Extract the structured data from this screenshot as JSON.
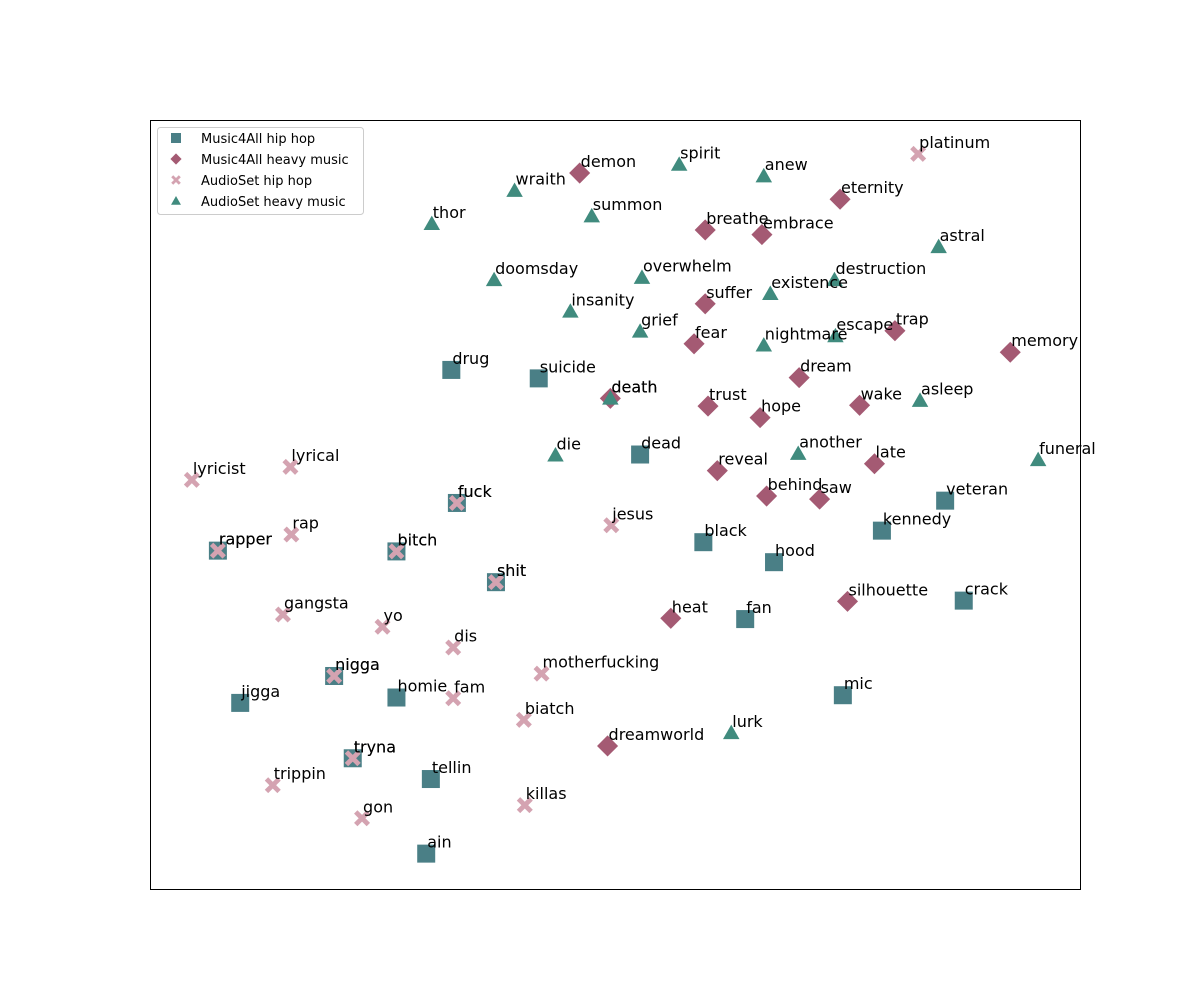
{
  "chart_data": {
    "type": "scatter",
    "title": "",
    "xlabel": "",
    "ylabel": "",
    "xlim": [
      0,
      100
    ],
    "ylim": [
      0,
      100
    ],
    "axes_ticks": false,
    "grid": false,
    "legend": {
      "position": "upper-left"
    },
    "colors": {
      "Music4All hip hop": "#4a7f86",
      "Music4All heavy music": "#a45a73",
      "AudioSet hip hop": "#d4a3b1",
      "AudioSet heavy music": "#408b7e"
    },
    "series": [
      {
        "name": "Music4All hip hop",
        "marker": "square",
        "points": [
          {
            "label": "drug",
            "x": 32.4,
            "y": 67.5
          },
          {
            "label": "suicide",
            "x": 41.8,
            "y": 66.4
          },
          {
            "label": "dead",
            "x": 52.7,
            "y": 56.5
          },
          {
            "label": "fuck",
            "x": 33.0,
            "y": 50.2
          },
          {
            "label": "rapper",
            "x": 7.3,
            "y": 44.0
          },
          {
            "label": "bitch",
            "x": 26.5,
            "y": 43.9
          },
          {
            "label": "shit",
            "x": 37.2,
            "y": 39.9
          },
          {
            "label": "black",
            "x": 59.5,
            "y": 45.1
          },
          {
            "label": "hood",
            "x": 67.1,
            "y": 42.5
          },
          {
            "label": "veteran",
            "x": 85.5,
            "y": 50.5
          },
          {
            "label": "kennedy",
            "x": 78.7,
            "y": 46.6
          },
          {
            "label": "crack",
            "x": 87.5,
            "y": 37.5
          },
          {
            "label": "fan",
            "x": 64.0,
            "y": 35.1
          },
          {
            "label": "nigga",
            "x": 19.8,
            "y": 27.7
          },
          {
            "label": "homie",
            "x": 26.5,
            "y": 24.9
          },
          {
            "label": "jigga",
            "x": 9.7,
            "y": 24.2
          },
          {
            "label": "mic",
            "x": 74.5,
            "y": 25.2
          },
          {
            "label": "tryna",
            "x": 21.8,
            "y": 17.0
          },
          {
            "label": "tellin",
            "x": 30.2,
            "y": 14.3
          },
          {
            "label": "ain",
            "x": 29.7,
            "y": 4.6
          }
        ]
      },
      {
        "name": "Music4All heavy music",
        "marker": "diamond",
        "points": [
          {
            "label": "demon",
            "x": 46.2,
            "y": 93.1
          },
          {
            "label": "eternity",
            "x": 74.2,
            "y": 89.7
          },
          {
            "label": "breathe",
            "x": 59.7,
            "y": 85.7
          },
          {
            "label": "embrace",
            "x": 65.8,
            "y": 85.1
          },
          {
            "label": "suffer",
            "x": 59.7,
            "y": 76.1
          },
          {
            "label": "trap",
            "x": 80.1,
            "y": 72.6
          },
          {
            "label": "fear",
            "x": 58.5,
            "y": 70.9
          },
          {
            "label": "memory",
            "x": 92.5,
            "y": 69.8
          },
          {
            "label": "dream",
            "x": 69.8,
            "y": 66.5
          },
          {
            "label": "death",
            "x": 49.5,
            "y": 63.8
          },
          {
            "label": "trust",
            "x": 60.0,
            "y": 62.8
          },
          {
            "label": "hope",
            "x": 65.6,
            "y": 61.3
          },
          {
            "label": "wake",
            "x": 76.3,
            "y": 62.9
          },
          {
            "label": "reveal",
            "x": 61.0,
            "y": 54.4
          },
          {
            "label": "late",
            "x": 77.9,
            "y": 55.3
          },
          {
            "label": "behind",
            "x": 66.3,
            "y": 51.1
          },
          {
            "label": "saw",
            "x": 72.0,
            "y": 50.7
          },
          {
            "label": "silhouette",
            "x": 75.0,
            "y": 37.4
          },
          {
            "label": "heat",
            "x": 56.0,
            "y": 35.2
          },
          {
            "label": "dreamworld",
            "x": 49.2,
            "y": 18.6
          }
        ]
      },
      {
        "name": "AudioSet hip hop",
        "marker": "x",
        "points": [
          {
            "label": "platinum",
            "x": 82.6,
            "y": 95.6
          },
          {
            "label": "lyricist",
            "x": 4.5,
            "y": 53.2
          },
          {
            "label": "lyrical",
            "x": 15.1,
            "y": 54.9
          },
          {
            "label": "fuck",
            "x": 33.0,
            "y": 50.2
          },
          {
            "label": "jesus",
            "x": 49.6,
            "y": 47.3
          },
          {
            "label": "rap",
            "x": 15.2,
            "y": 46.1
          },
          {
            "label": "rapper",
            "x": 7.3,
            "y": 44.0
          },
          {
            "label": "bitch",
            "x": 26.5,
            "y": 43.9
          },
          {
            "label": "shit",
            "x": 37.2,
            "y": 39.9
          },
          {
            "label": "gangsta",
            "x": 14.3,
            "y": 35.7
          },
          {
            "label": "yo",
            "x": 25.0,
            "y": 34.1
          },
          {
            "label": "dis",
            "x": 32.6,
            "y": 31.4
          },
          {
            "label": "nigga",
            "x": 19.8,
            "y": 27.7
          },
          {
            "label": "motherfucking",
            "x": 42.1,
            "y": 28.0
          },
          {
            "label": "fam",
            "x": 32.6,
            "y": 24.8
          },
          {
            "label": "biatch",
            "x": 40.2,
            "y": 22.0
          },
          {
            "label": "tryna",
            "x": 21.8,
            "y": 17.0
          },
          {
            "label": "trippin",
            "x": 13.2,
            "y": 13.5
          },
          {
            "label": "killas",
            "x": 40.3,
            "y": 10.9
          },
          {
            "label": "gon",
            "x": 22.8,
            "y": 9.2
          }
        ]
      },
      {
        "name": "AudioSet heavy music",
        "marker": "triangle",
        "points": [
          {
            "label": "spirit",
            "x": 56.9,
            "y": 94.2
          },
          {
            "label": "anew",
            "x": 66.0,
            "y": 92.7
          },
          {
            "label": "wraith",
            "x": 39.2,
            "y": 90.8
          },
          {
            "label": "summon",
            "x": 47.5,
            "y": 87.5
          },
          {
            "label": "thor",
            "x": 30.3,
            "y": 86.5
          },
          {
            "label": "astral",
            "x": 84.8,
            "y": 83.5
          },
          {
            "label": "doomsday",
            "x": 37.0,
            "y": 79.2
          },
          {
            "label": "overwhelm",
            "x": 52.9,
            "y": 79.5
          },
          {
            "label": "destruction",
            "x": 73.6,
            "y": 79.2
          },
          {
            "label": "existence",
            "x": 66.7,
            "y": 77.4
          },
          {
            "label": "insanity",
            "x": 45.2,
            "y": 75.1
          },
          {
            "label": "grief",
            "x": 52.7,
            "y": 72.5
          },
          {
            "label": "escape",
            "x": 73.7,
            "y": 71.9
          },
          {
            "label": "nightmare",
            "x": 66.0,
            "y": 70.7
          },
          {
            "label": "death",
            "x": 49.5,
            "y": 63.8
          },
          {
            "label": "asleep",
            "x": 82.8,
            "y": 63.5
          },
          {
            "label": "die",
            "x": 43.6,
            "y": 56.4
          },
          {
            "label": "another",
            "x": 69.7,
            "y": 56.6
          },
          {
            "label": "funeral",
            "x": 95.5,
            "y": 55.8
          },
          {
            "label": "lurk",
            "x": 62.5,
            "y": 20.3
          }
        ]
      }
    ]
  }
}
